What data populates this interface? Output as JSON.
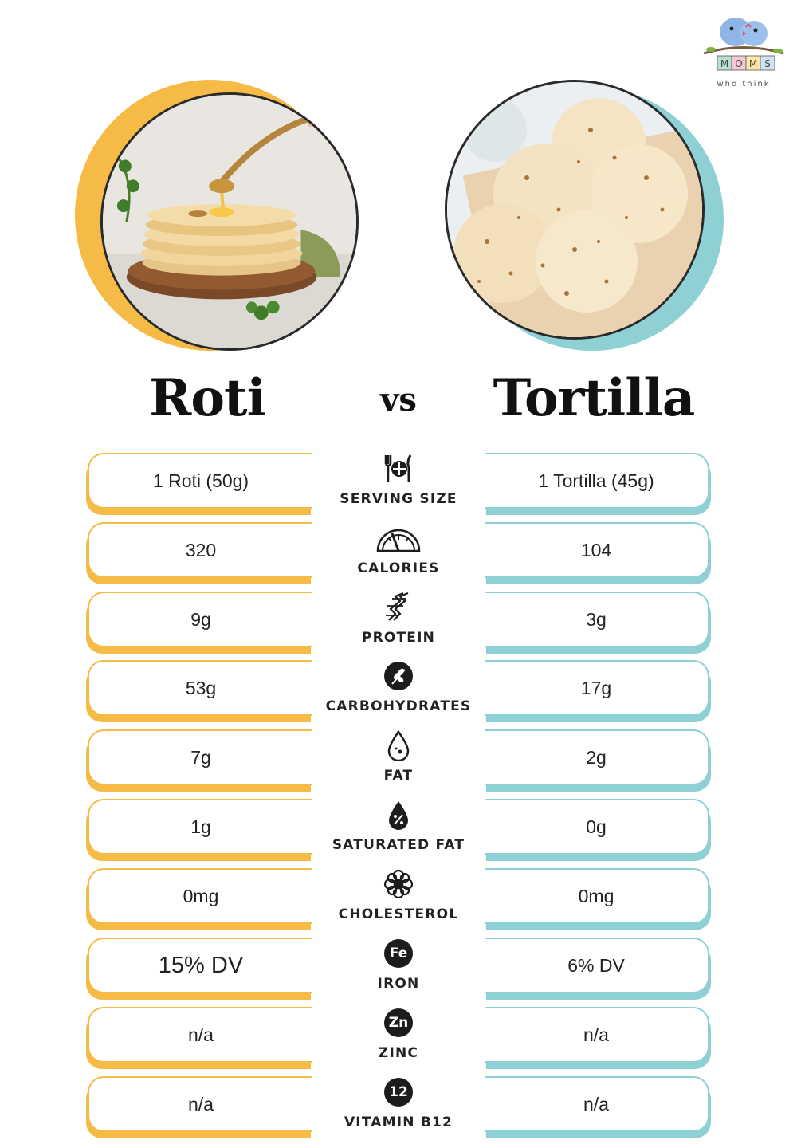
{
  "brand": {
    "logo_text": "MOMS",
    "tagline": "who think"
  },
  "left": {
    "title": "Roti",
    "accent": "#f6bb47"
  },
  "right": {
    "title": "Tortilla",
    "accent": "#8fd0d4"
  },
  "vs_label": "vs",
  "rows": [
    {
      "label": "SERVING SIZE",
      "icon": "utensils-plate-icon",
      "left": "1 Roti (50g)",
      "right": "1 Tortilla (45g)"
    },
    {
      "label": "CALORIES",
      "icon": "gauge-icon",
      "left": "320",
      "right": "104"
    },
    {
      "label": "PROTEIN",
      "icon": "protein-helix-icon",
      "left": "9g",
      "right": "3g"
    },
    {
      "label": "CARBOHYDRATES",
      "icon": "wheat-icon",
      "left": "53g",
      "right": "17g"
    },
    {
      "label": "FAT",
      "icon": "drop-icon",
      "left": "7g",
      "right": "2g"
    },
    {
      "label": "SATURATED FAT",
      "icon": "percent-drop-icon",
      "left": "1g",
      "right": "0g"
    },
    {
      "label": "CHOLESTEROL",
      "icon": "molecule-icon",
      "left": "0mg",
      "right": "0mg"
    },
    {
      "label": "IRON",
      "icon": "iron-badge-icon",
      "badge": "Fe",
      "left": "15% DV",
      "right": "6% DV"
    },
    {
      "label": "ZINC",
      "icon": "zinc-badge-icon",
      "badge": "Zn",
      "left": "n/a",
      "right": "n/a"
    },
    {
      "label": "VITAMIN B12",
      "icon": "b12-badge-icon",
      "badge": "12",
      "left": "n/a",
      "right": "n/a"
    }
  ]
}
